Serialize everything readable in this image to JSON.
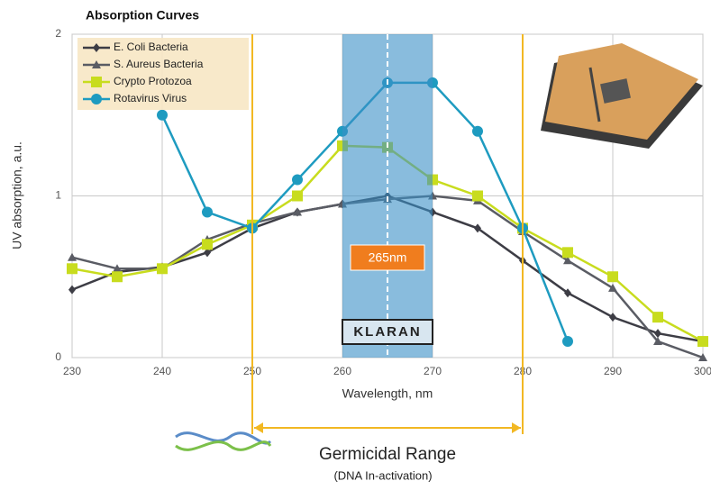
{
  "chart_data": {
    "type": "line",
    "title": "Absorption Curves",
    "x_label": "Wavelength, nm",
    "y_label": "UV absorption, a.u.",
    "x": [
      230,
      235,
      240,
      245,
      250,
      255,
      260,
      265,
      270,
      275,
      280,
      285,
      290,
      295,
      300
    ],
    "xlim": [
      230,
      300
    ],
    "xticks": [
      230,
      240,
      250,
      260,
      270,
      280,
      290,
      300
    ],
    "ylim": [
      0,
      2
    ],
    "yticks": [
      0,
      1,
      2
    ],
    "grid": true,
    "legend": "top-left",
    "series": [
      {
        "name": "E. Coli Bacteria",
        "color": "#3d3d45",
        "marker": "diamond",
        "values": [
          0.42,
          0.53,
          0.56,
          0.65,
          0.8,
          0.9,
          0.95,
          1.0,
          0.9,
          0.8,
          0.6,
          0.4,
          0.25,
          0.15,
          0.1
        ]
      },
      {
        "name": "S. Aureus Bacteria",
        "color": "#5a5c64",
        "marker": "triangle",
        "values": [
          0.62,
          0.55,
          0.55,
          0.73,
          0.83,
          0.9,
          0.95,
          0.98,
          1.0,
          0.97,
          0.78,
          0.6,
          0.43,
          0.1,
          0.0
        ]
      },
      {
        "name": "Crypto Protozoa",
        "color": "#c8dc1e",
        "marker": "square",
        "values": [
          0.55,
          0.5,
          0.55,
          0.7,
          0.82,
          1.0,
          1.31,
          1.3,
          1.1,
          1.0,
          0.8,
          0.65,
          0.5,
          0.25,
          0.1
        ]
      },
      {
        "name": "Rotavirus Virus",
        "color": "#1e9bc0",
        "marker": "circle",
        "values": [
          null,
          null,
          1.5,
          0.9,
          0.8,
          1.1,
          1.4,
          1.7,
          1.7,
          1.4,
          0.8,
          0.1,
          null,
          null,
          null
        ]
      }
    ],
    "band": {
      "range": [
        260,
        270
      ],
      "color": "#3a8fc7"
    },
    "peak": {
      "value": 265,
      "label": "265nm"
    },
    "brand": "KLARAN",
    "germicidal_range": {
      "range": [
        250,
        280
      ],
      "color": "#f2b823",
      "label": "Germicidal Range",
      "sublabel": "(DNA In-activation)"
    }
  }
}
